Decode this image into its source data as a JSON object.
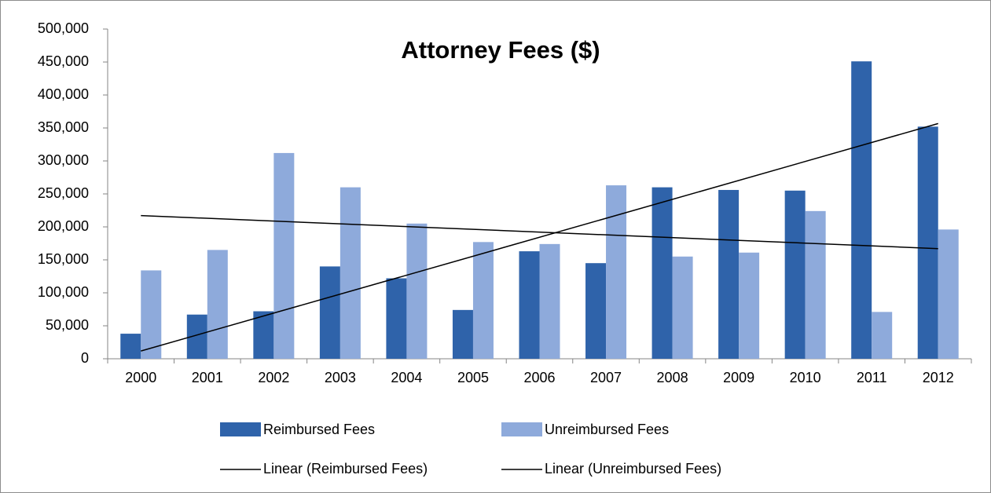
{
  "chart_data": {
    "type": "bar",
    "title": "Attorney Fees ($)",
    "categories": [
      "2000",
      "2001",
      "2002",
      "2003",
      "2004",
      "2005",
      "2006",
      "2007",
      "2008",
      "2009",
      "2010",
      "2011",
      "2012"
    ],
    "series": [
      {
        "name": "Reimbursed Fees",
        "color": "#2f63aa",
        "values": [
          38000,
          67000,
          72000,
          140000,
          122000,
          74000,
          163000,
          145000,
          260000,
          256000,
          255000,
          451000,
          352000
        ],
        "trendline": {
          "type": "linear",
          "name": "Linear (Reimbursed Fees)",
          "color": "#000000"
        }
      },
      {
        "name": "Unreimbursed Fees",
        "color": "#8eaadb",
        "values": [
          134000,
          165000,
          312000,
          260000,
          205000,
          177000,
          174000,
          263000,
          155000,
          161000,
          224000,
          71000,
          196000
        ],
        "trendline": {
          "type": "linear",
          "name": "Linear (Unreimbursed Fees)",
          "color": "#000000"
        }
      }
    ],
    "ylim": [
      0,
      500000
    ],
    "yticks": [
      0,
      {
        "value": 50000,
        "label": "50,000"
      },
      {
        "value": 100000,
        "label": "100,000"
      },
      {
        "value": 150000,
        "label": "150,000"
      },
      {
        "value": 200000,
        "label": "200,000"
      },
      {
        "value": 250000,
        "label": "250,000"
      },
      {
        "value": 300000,
        "label": "300,000"
      },
      {
        "value": 350000,
        "label": "350,000"
      },
      {
        "value": 400000,
        "label": "400,000"
      },
      {
        "value": 450000,
        "label": "450,000"
      },
      {
        "value": 500000,
        "label": "500,000"
      }
    ],
    "grid": false,
    "legend": "bottom"
  }
}
